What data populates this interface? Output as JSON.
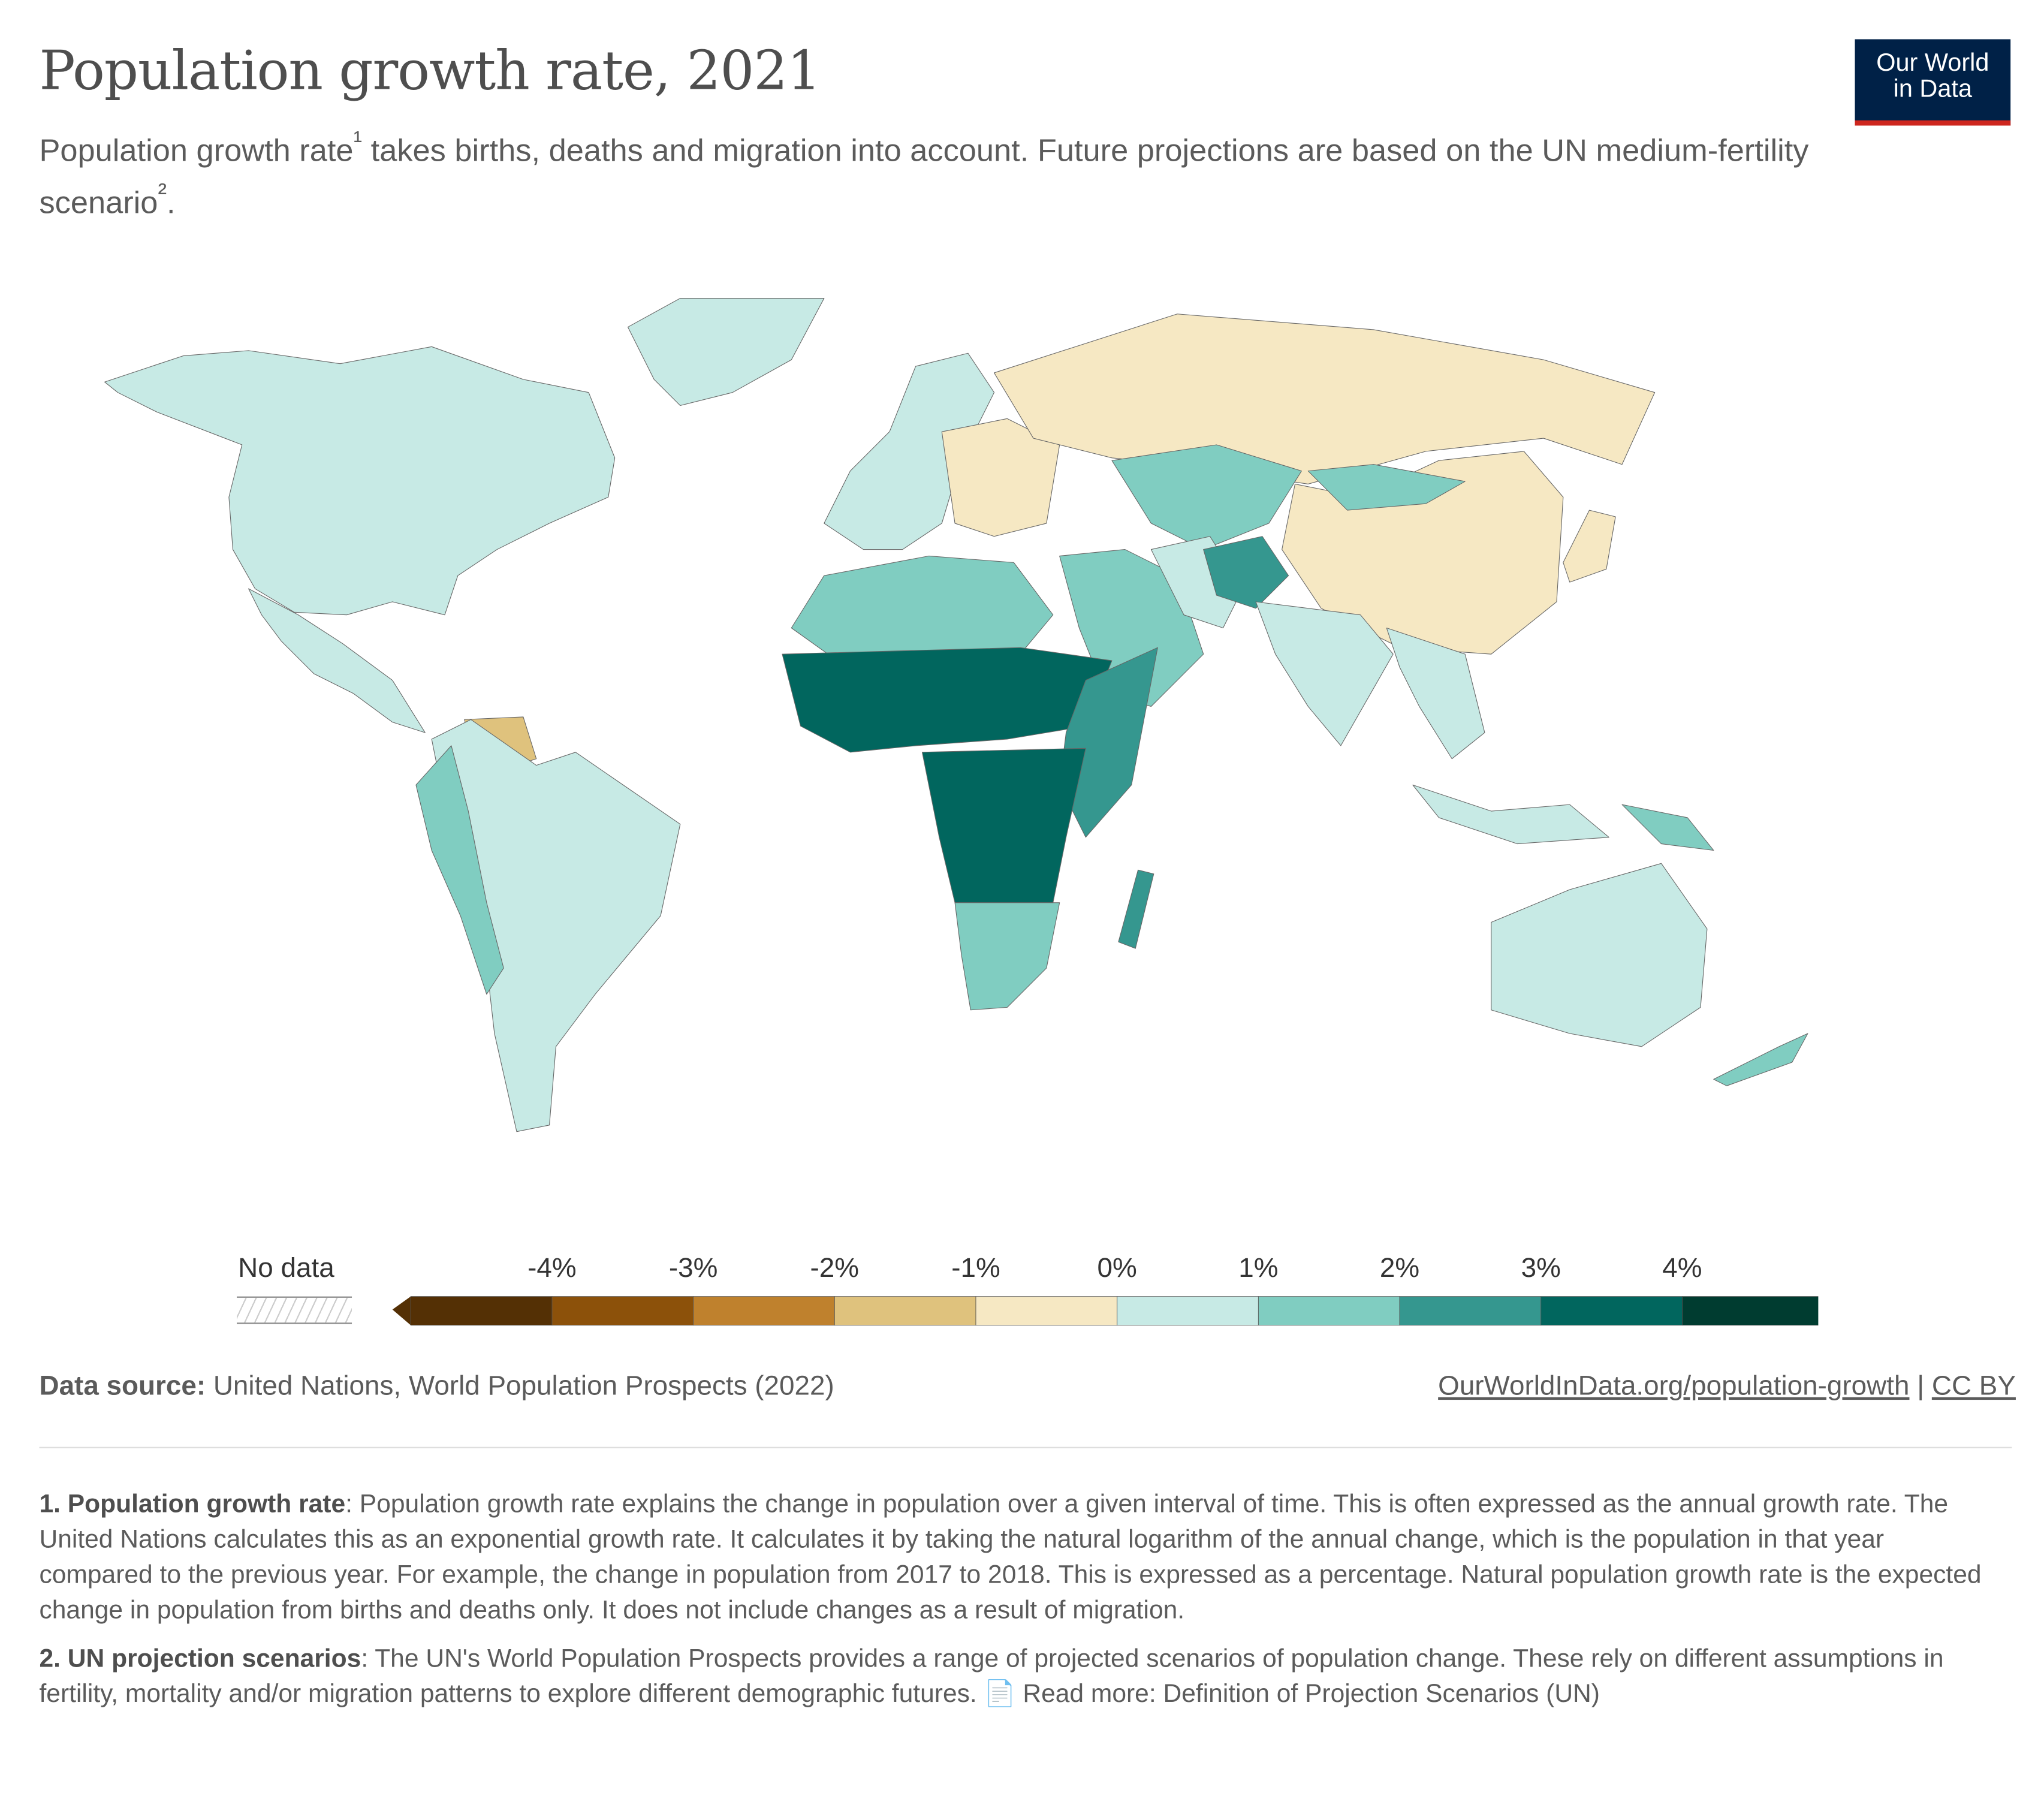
{
  "header": {
    "title": "Population growth rate, 2021",
    "subtitle_part1": "Population growth rate",
    "sup1": "¹",
    "subtitle_part2": " takes births, deaths and migration into account. Future projections are based on the UN medium-fertility scenario",
    "sup2": "²",
    "subtitle_end": ".",
    "logo_line1": "Our World",
    "logo_line2": "in Data"
  },
  "colors": {
    "bins": [
      "#543005",
      "#8c510a",
      "#bf812d",
      "#dfc27d",
      "#f6e8c3",
      "#c7eae5",
      "#80cdc1",
      "#35978f",
      "#01665e",
      "#003c30"
    ],
    "logo_bg": "#002147",
    "logo_accent": "#ce261e"
  },
  "chart_data": {
    "type": "choropleth-map",
    "title": "Population growth rate, 2021",
    "unit": "%",
    "legend": {
      "no_data_label": "No data",
      "ticks": [
        "-4%",
        "-3%",
        "-2%",
        "-1%",
        "0%",
        "1%",
        "2%",
        "3%",
        "4%"
      ],
      "tick_values": [
        -4,
        -3,
        -2,
        -1,
        0,
        1,
        2,
        3,
        4
      ]
    },
    "regions": [
      {
        "name": "North America",
        "bin_value": 0.5
      },
      {
        "name": "Greenland",
        "bin_value": 0.5
      },
      {
        "name": "Mexico & Central America",
        "bin_value": 0.5
      },
      {
        "name": "Venezuela",
        "bin_value": -1.5
      },
      {
        "name": "South America",
        "bin_value": 0.5
      },
      {
        "name": "Andean countries",
        "bin_value": 1.5
      },
      {
        "name": "Western Europe",
        "bin_value": 0.5
      },
      {
        "name": "Eastern Europe",
        "bin_value": -0.5
      },
      {
        "name": "Russia",
        "bin_value": -0.5
      },
      {
        "name": "China",
        "bin_value": -0.5
      },
      {
        "name": "Japan",
        "bin_value": -0.5
      },
      {
        "name": "Central Asia",
        "bin_value": 1.5
      },
      {
        "name": "Mongolia",
        "bin_value": 1.5
      },
      {
        "name": "Middle East",
        "bin_value": 1.5
      },
      {
        "name": "Iran",
        "bin_value": 0.5
      },
      {
        "name": "Afghanistan",
        "bin_value": 2.5
      },
      {
        "name": "India",
        "bin_value": 0.5
      },
      {
        "name": "Southeast Asia",
        "bin_value": 0.5
      },
      {
        "name": "North Africa",
        "bin_value": 1.5
      },
      {
        "name": "Sahel",
        "bin_value": 3.5
      },
      {
        "name": "East Africa",
        "bin_value": 2.5
      },
      {
        "name": "Central Africa",
        "bin_value": 3.5
      },
      {
        "name": "Southern Africa",
        "bin_value": 1.5
      },
      {
        "name": "Madagascar",
        "bin_value": 2.5
      },
      {
        "name": "Indonesia",
        "bin_value": 0.5
      },
      {
        "name": "Papua New Guinea",
        "bin_value": 1.5
      },
      {
        "name": "Australia",
        "bin_value": 0.5
      },
      {
        "name": "New Zealand",
        "bin_value": 1.5
      }
    ]
  },
  "footer": {
    "source_label": "Data source:",
    "source_text": " United Nations, World Population Prospects (2022)",
    "url": "OurWorldInData.org/population-growth",
    "sep": " | ",
    "license": "CC BY",
    "note1_title": "1. Population growth rate",
    "note1_text": ": Population growth rate explains the change in population over a given interval of time. This is often expressed as the annual growth rate. The United Nations calculates this as an exponential growth rate. It calculates it by taking the natural logarithm of the annual change, which is the population in that year compared to the previous year. For example, the change in population from 2017 to 2018. This is expressed as a percentage. Natural population growth rate is the expected change in population from births and deaths only. It does not include changes as a result of migration.",
    "note2_title": "2. UN projection scenarios",
    "note2_text": ": The UN's World Population Prospects provides a range of projected scenarios of population change. These rely on different assumptions in fertility, mortality and/or migration patterns to explore different demographic futures. 📄 Read more: Definition of Projection Scenarios (UN)"
  }
}
